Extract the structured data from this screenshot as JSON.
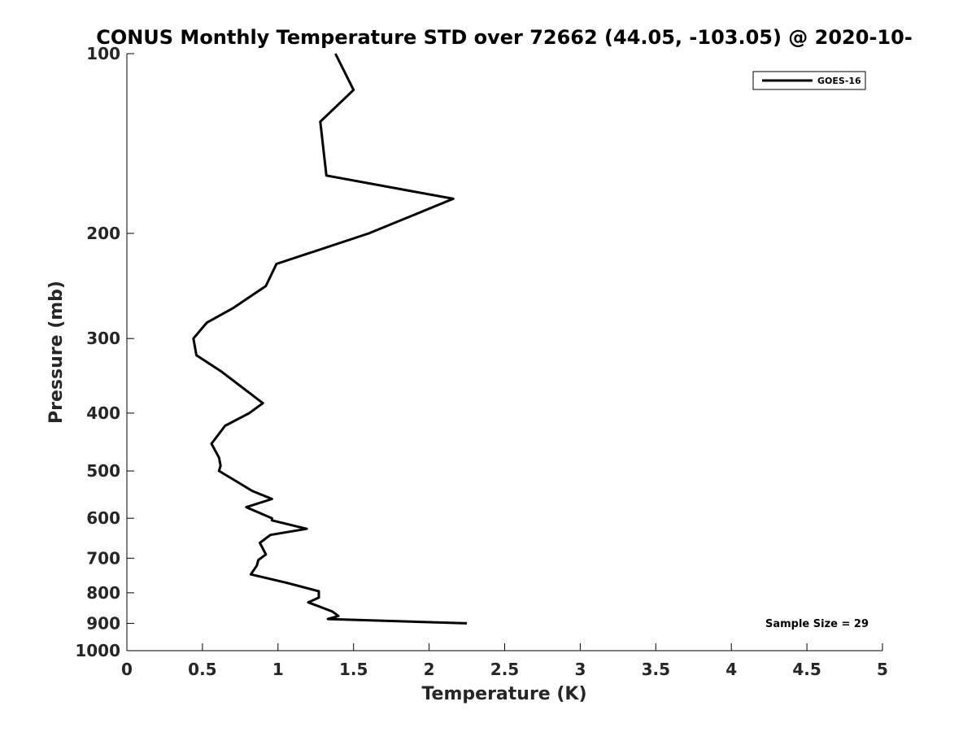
{
  "chart_data": {
    "type": "line",
    "title": "CONUS Monthly Temperature STD over 72662 (44.05, -103.05) @ 2020-10-",
    "xlabel": "Temperature (K)",
    "ylabel": "Pressure (mb)",
    "xlim": [
      0,
      5
    ],
    "ylim": [
      100,
      1000
    ],
    "y_scale": "log",
    "y_reversed": true,
    "x_ticks": [
      "0",
      "0.5",
      "1",
      "1.5",
      "2",
      "2.5",
      "3",
      "3.5",
      "4",
      "4.5",
      "5"
    ],
    "x_tick_values": [
      0,
      0.5,
      1,
      1.5,
      2,
      2.5,
      3,
      3.5,
      4,
      4.5,
      5
    ],
    "y_ticks": [
      "100",
      "200",
      "300",
      "400",
      "500",
      "600",
      "700",
      "800",
      "900",
      "1000"
    ],
    "y_tick_values": [
      100,
      200,
      300,
      400,
      500,
      600,
      700,
      800,
      900,
      1000
    ],
    "grid": false,
    "legend_position": "top-right",
    "annotation": "Sample Size = 29",
    "series": [
      {
        "name": "GOES-16",
        "color": "#000000",
        "x": [
          1.38,
          1.5,
          1.28,
          1.32,
          2.16,
          1.6,
          0.99,
          0.92,
          0.7,
          0.53,
          0.44,
          0.46,
          0.62,
          0.9,
          0.81,
          0.65,
          0.56,
          0.61,
          0.62,
          0.61,
          0.83,
          0.96,
          0.79,
          0.96,
          0.96,
          1.19,
          0.95,
          0.88,
          0.92,
          0.87,
          0.86,
          0.82,
          1.06,
          1.27,
          1.27,
          1.2,
          1.36,
          1.4,
          1.33,
          2.25
        ],
        "y": [
          100,
          115,
          130,
          160,
          175,
          200,
          225,
          245,
          267,
          282,
          300,
          320,
          340,
          385,
          400,
          420,
          450,
          475,
          490,
          500,
          540,
          557,
          575,
          600,
          605,
          625,
          640,
          660,
          690,
          705,
          720,
          745,
          770,
          795,
          815,
          830,
          860,
          875,
          885,
          900
        ]
      }
    ]
  }
}
